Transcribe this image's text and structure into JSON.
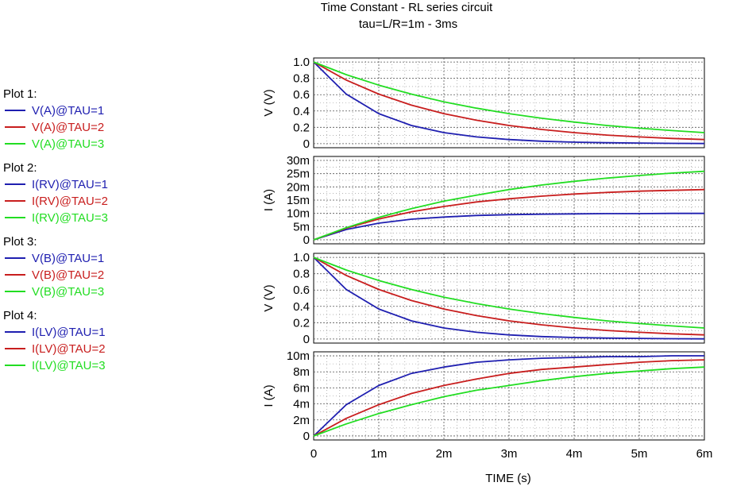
{
  "title": "Time Constant  -  RL series circuit",
  "subtitle": "tau=L/R=1m - 3ms",
  "colors": {
    "tau1": "#1f1fb0",
    "tau2": "#c81e1e",
    "tau3": "#22dd22"
  },
  "legend": [
    {
      "heading": "Plot 1:",
      "items": [
        "V(A)@TAU=1",
        "V(A)@TAU=2",
        "V(A)@TAU=3"
      ]
    },
    {
      "heading": "Plot 2:",
      "items": [
        "I(RV)@TAU=1",
        "I(RV)@TAU=2",
        "I(RV)@TAU=3"
      ]
    },
    {
      "heading": "Plot 3:",
      "items": [
        "V(B)@TAU=1",
        "V(B)@TAU=2",
        "V(B)@TAU=3"
      ]
    },
    {
      "heading": "Plot 4:",
      "items": [
        "I(LV)@TAU=1",
        "I(LV)@TAU=2",
        "I(LV)@TAU=3"
      ]
    }
  ],
  "chart_data": {
    "type": "line",
    "xlabel": "TIME  (s)",
    "xlim": [
      0,
      0.006
    ],
    "xticks": [
      0,
      0.001,
      0.002,
      0.003,
      0.004,
      0.005,
      0.006
    ],
    "xtick_labels": [
      "0",
      "1m",
      "2m",
      "3m",
      "4m",
      "5m",
      "6m"
    ],
    "x": [
      0,
      0.0005,
      0.001,
      0.0015,
      0.002,
      0.0025,
      0.003,
      0.0035,
      0.004,
      0.0045,
      0.005,
      0.0055,
      0.006
    ],
    "grid": true,
    "plots": [
      {
        "ylabel": "V  (V)",
        "ylim": [
          -0.05,
          1.05
        ],
        "yticks": [
          0,
          0.2,
          0.4,
          0.6,
          0.8,
          1.0
        ],
        "ytick_labels": [
          "0",
          "0.2",
          "0.4",
          "0.6",
          "0.8",
          "1.0"
        ],
        "series": [
          {
            "name": "V(A)@TAU=1",
            "color": "#1f1fb0",
            "values": [
              1.0,
              0.607,
              0.368,
              0.223,
              0.135,
              0.082,
              0.05,
              0.03,
              0.018,
              0.011,
              0.007,
              0.004,
              0.002
            ]
          },
          {
            "name": "V(A)@TAU=2",
            "color": "#c81e1e",
            "values": [
              1.0,
              0.779,
              0.607,
              0.472,
              0.368,
              0.287,
              0.223,
              0.174,
              0.135,
              0.105,
              0.082,
              0.064,
              0.05
            ]
          },
          {
            "name": "V(A)@TAU=3",
            "color": "#22dd22",
            "values": [
              1.0,
              0.846,
              0.717,
              0.607,
              0.513,
              0.435,
              0.368,
              0.311,
              0.264,
              0.223,
              0.189,
              0.16,
              0.135
            ]
          }
        ]
      },
      {
        "ylabel": "I  (A)",
        "ylim": [
          -0.0015,
          0.0315
        ],
        "yticks": [
          0,
          0.005,
          0.01,
          0.015,
          0.02,
          0.025,
          0.03
        ],
        "ytick_labels": [
          "0",
          "5m",
          "10m",
          "15m",
          "20m",
          "25m",
          "30m"
        ],
        "series": [
          {
            "name": "I(RV)@TAU=1",
            "color": "#1f1fb0",
            "values": [
              0,
              0.0039,
              0.0063,
              0.0078,
              0.0086,
              0.0092,
              0.0095,
              0.0097,
              0.0098,
              0.0099,
              0.0099,
              0.01,
              0.01
            ]
          },
          {
            "name": "I(RV)@TAU=2",
            "color": "#c81e1e",
            "values": [
              0,
              0.0044,
              0.0079,
              0.0106,
              0.0126,
              0.0143,
              0.0155,
              0.0165,
              0.0173,
              0.0179,
              0.0184,
              0.0187,
              0.019
            ]
          },
          {
            "name": "I(RV)@TAU=3",
            "color": "#22dd22",
            "values": [
              0,
              0.0046,
              0.0085,
              0.0118,
              0.0146,
              0.0169,
              0.019,
              0.0207,
              0.0221,
              0.0233,
              0.0243,
              0.0252,
              0.0259
            ]
          }
        ]
      },
      {
        "ylabel": "V  (V)",
        "ylim": [
          -0.05,
          1.05
        ],
        "yticks": [
          0,
          0.2,
          0.4,
          0.6,
          0.8,
          1.0
        ],
        "ytick_labels": [
          "0",
          "0.2",
          "0.4",
          "0.6",
          "0.8",
          "1.0"
        ],
        "series": [
          {
            "name": "V(B)@TAU=1",
            "color": "#1f1fb0",
            "values": [
              1.0,
              0.607,
              0.368,
              0.223,
              0.135,
              0.082,
              0.05,
              0.03,
              0.018,
              0.011,
              0.007,
              0.004,
              0.002
            ]
          },
          {
            "name": "V(B)@TAU=2",
            "color": "#c81e1e",
            "values": [
              1.0,
              0.779,
              0.607,
              0.472,
              0.368,
              0.287,
              0.223,
              0.174,
              0.135,
              0.105,
              0.082,
              0.064,
              0.05
            ]
          },
          {
            "name": "V(B)@TAU=3",
            "color": "#22dd22",
            "values": [
              1.0,
              0.846,
              0.717,
              0.607,
              0.513,
              0.435,
              0.368,
              0.311,
              0.264,
              0.223,
              0.189,
              0.16,
              0.135
            ]
          }
        ]
      },
      {
        "ylabel": "I  (A)",
        "ylim": [
          -0.0005,
          0.0105
        ],
        "yticks": [
          0,
          0.002,
          0.004,
          0.006,
          0.008,
          0.01
        ],
        "ytick_labels": [
          "0",
          "2m",
          "4m",
          "6m",
          "8m",
          "10m"
        ],
        "series": [
          {
            "name": "I(LV)@TAU=1",
            "color": "#1f1fb0",
            "values": [
              0,
              0.0039,
              0.0063,
              0.0078,
              0.0086,
              0.0092,
              0.0095,
              0.0097,
              0.0098,
              0.0099,
              0.0099,
              0.01,
              0.01
            ]
          },
          {
            "name": "I(LV)@TAU=2",
            "color": "#c81e1e",
            "values": [
              0,
              0.0022,
              0.0039,
              0.0053,
              0.0063,
              0.0071,
              0.0078,
              0.0083,
              0.0086,
              0.0089,
              0.0092,
              0.0094,
              0.0095
            ]
          },
          {
            "name": "I(LV)@TAU=3",
            "color": "#22dd22",
            "values": [
              0,
              0.0015,
              0.0028,
              0.0039,
              0.0049,
              0.0057,
              0.0063,
              0.0069,
              0.0074,
              0.0078,
              0.0081,
              0.0084,
              0.0086
            ]
          }
        ]
      }
    ]
  }
}
